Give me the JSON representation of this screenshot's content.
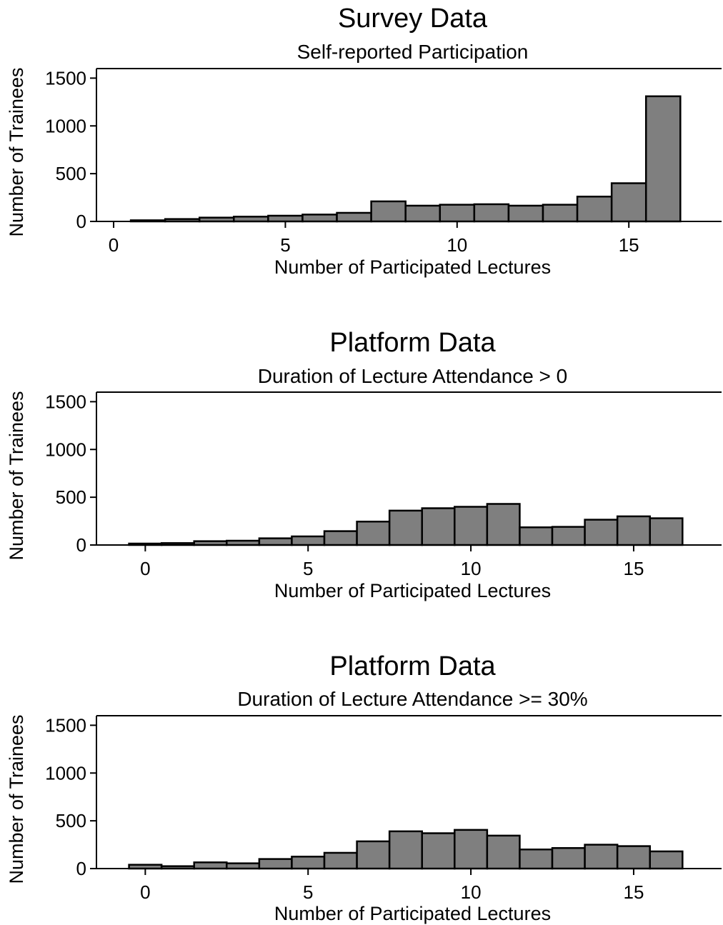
{
  "chart_data": [
    {
      "type": "bar",
      "title": "Survey Data",
      "subtitle": "Self-reported Participation",
      "xlabel": "Number of Participated Lectures",
      "ylabel": "Number of Trainees",
      "ylim": [
        0,
        1600
      ],
      "xlim": [
        -0.5,
        17.7
      ],
      "xticks": [
        0,
        5,
        10,
        15
      ],
      "yticks": [
        0,
        500,
        1000,
        1500
      ],
      "x": [
        1,
        2,
        3,
        4,
        5,
        6,
        7,
        8,
        9,
        10,
        11,
        12,
        13,
        14,
        15,
        16
      ],
      "values": [
        12,
        25,
        40,
        50,
        60,
        72,
        90,
        210,
        165,
        175,
        180,
        165,
        175,
        260,
        400,
        1310
      ]
    },
    {
      "type": "bar",
      "title": "Platform Data",
      "subtitle": "Duration of Lecture Attendance > 0",
      "xlabel": "Number of Participated Lectures",
      "ylabel": "Number of Trainees",
      "ylim": [
        0,
        1600
      ],
      "xlim": [
        -1.5,
        17.7
      ],
      "xticks": [
        0,
        5,
        10,
        15
      ],
      "yticks": [
        0,
        500,
        1000,
        1500
      ],
      "x": [
        0,
        1,
        2,
        3,
        4,
        5,
        6,
        7,
        8,
        9,
        10,
        11,
        12,
        13,
        14,
        15,
        16
      ],
      "values": [
        15,
        20,
        40,
        45,
        70,
        90,
        145,
        245,
        360,
        385,
        400,
        430,
        185,
        190,
        265,
        300,
        280
      ]
    },
    {
      "type": "bar",
      "title": "Platform Data",
      "subtitle": "Duration of Lecture Attendance >= 30%",
      "xlabel": "Number of Participated Lectures",
      "ylabel": "Number of Trainees",
      "ylim": [
        0,
        1600
      ],
      "xlim": [
        -1.5,
        17.7
      ],
      "xticks": [
        0,
        5,
        10,
        15
      ],
      "yticks": [
        0,
        500,
        1000,
        1500
      ],
      "x": [
        0,
        1,
        2,
        3,
        4,
        5,
        6,
        7,
        8,
        9,
        10,
        11,
        12,
        13,
        14,
        15,
        16
      ],
      "values": [
        40,
        25,
        65,
        55,
        100,
        125,
        165,
        285,
        390,
        370,
        405,
        345,
        200,
        215,
        250,
        235,
        180
      ]
    }
  ]
}
